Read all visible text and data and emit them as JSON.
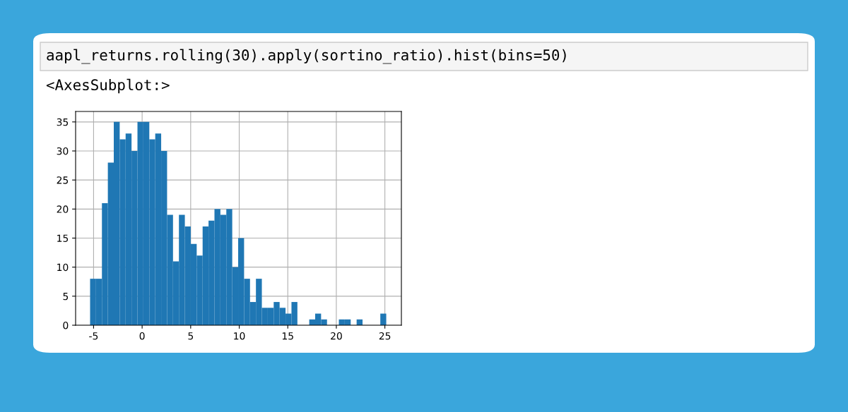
{
  "chart_data": {
    "type": "histogram",
    "annotations": [
      "aapl_returns.rolling(30).apply(sortino_ratio).hist(bins=50)",
      "<AxesSubplot:>"
    ],
    "bins": [
      -5.36,
      -4.75,
      -4.14,
      -3.53,
      -2.92,
      -2.31,
      -1.7,
      -1.09,
      -0.48,
      0.13,
      0.74,
      1.35,
      1.96,
      2.57,
      3.18,
      3.79,
      4.4,
      5.01,
      5.62,
      6.23,
      6.84,
      7.45,
      8.06,
      8.67,
      9.28,
      9.89,
      10.5,
      11.11,
      11.72,
      12.33,
      12.94,
      13.55,
      14.16,
      14.77,
      15.38,
      15.99,
      16.6,
      17.21,
      17.82,
      18.43,
      19.04,
      19.65,
      20.26,
      20.87,
      21.48,
      22.09,
      22.7,
      23.31,
      23.92,
      24.53,
      25.14
    ],
    "values": [
      8,
      8,
      21,
      28,
      35,
      32,
      33,
      30,
      35,
      35,
      32,
      33,
      30,
      19,
      11,
      19,
      17,
      14,
      12,
      17,
      18,
      20,
      19,
      20,
      10,
      15,
      8,
      4,
      8,
      3,
      3,
      4,
      3,
      2,
      4,
      0,
      0,
      1,
      2,
      1,
      0,
      0,
      1,
      1,
      0,
      1,
      0,
      0,
      0,
      2
    ],
    "color": "#1f77b4",
    "xlim": [
      -6.85,
      26.7
    ],
    "ylim": [
      0,
      36.8
    ],
    "xticks": [
      -5,
      0,
      5,
      10,
      15,
      20,
      25
    ],
    "yticks": [
      0,
      5,
      10,
      15,
      20,
      25,
      30,
      35
    ],
    "grid": true
  }
}
